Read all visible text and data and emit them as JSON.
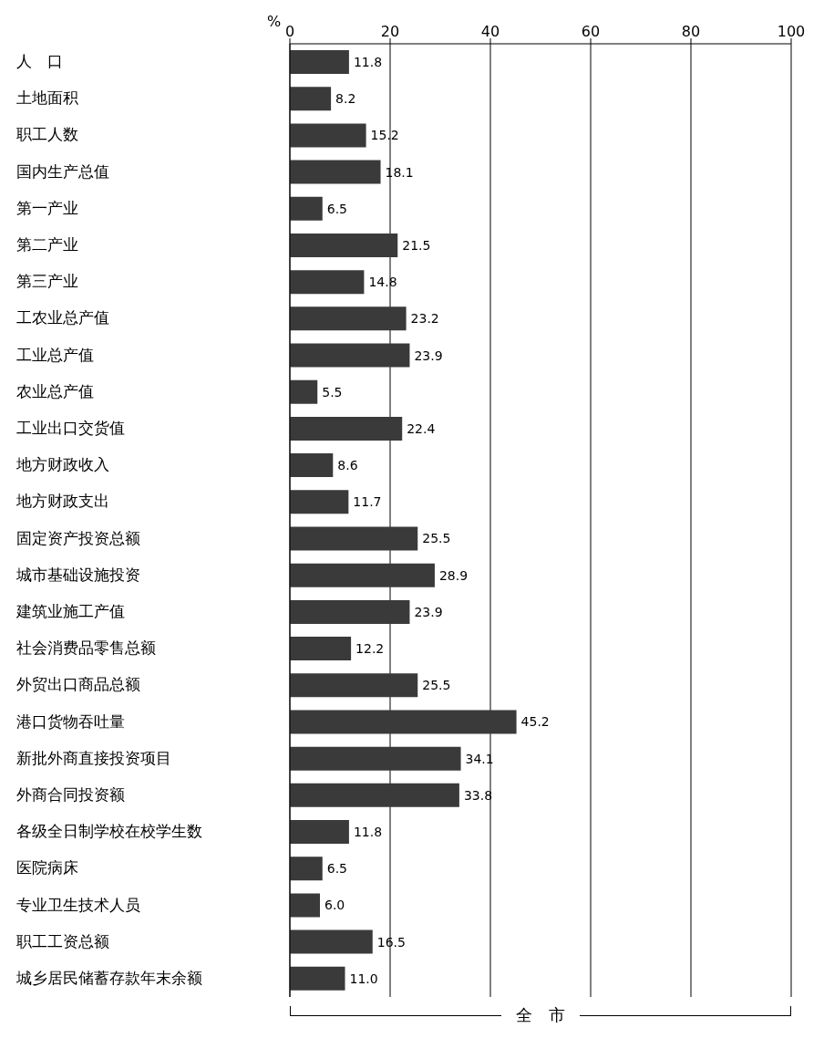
{
  "chart_data": {
    "type": "bar",
    "orientation": "horizontal",
    "xlabel": "%",
    "categories": [
      "人　口",
      "土地面积",
      "职工人数",
      "国内生产总值",
      "第一产业",
      "第二产业",
      "第三产业",
      "工农业总产值",
      "工业总产值",
      "农业总产值",
      "工业出口交货值",
      "地方财政收入",
      "地方财政支出",
      "固定资产投资总额",
      "城市基础设施投资",
      "建筑业施工产值",
      "社会消费品零售总额",
      "外贸出口商品总额",
      "港口货物吞吐量",
      "新批外商直接投资项目",
      "外商合同投资额",
      "各级全日制学校在校学生数",
      "医院病床",
      "专业卫生技术人员",
      "职工工资总额",
      "城乡居民储蓄存款年末余额"
    ],
    "values": [
      11.8,
      8.2,
      15.2,
      18.1,
      6.5,
      21.5,
      14.8,
      23.2,
      23.9,
      5.5,
      22.4,
      8.6,
      11.7,
      25.5,
      28.9,
      23.9,
      12.2,
      25.5,
      45.2,
      34.1,
      33.8,
      11.8,
      6.5,
      6.0,
      16.5,
      11.0
    ],
    "value_labels": [
      "11.8",
      "8.2",
      "15.2",
      "18.1",
      "6.5",
      "21.5",
      "14.8",
      "23.2",
      "23.9",
      "5.5",
      "22.4",
      "8.6",
      "11.7",
      "25.5",
      "28.9",
      "23.9",
      "12.2",
      "25.5",
      "45.2",
      "34.1",
      "33.8",
      "11.8",
      "6.5",
      "6.0",
      "16.5",
      "11.0"
    ],
    "color": "#3a3a3a",
    "xlim": [
      0,
      100
    ],
    "xticks": [
      0,
      20,
      40,
      60,
      80,
      100
    ],
    "grid": "x",
    "annotations": [
      "全　市"
    ]
  }
}
